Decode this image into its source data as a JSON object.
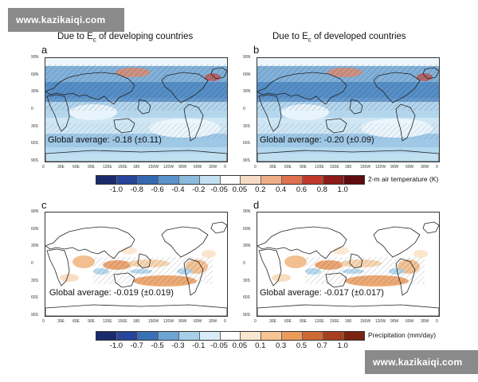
{
  "watermark": "www.kazikaiqi.com",
  "titles": {
    "left_prefix": "Due to E",
    "left_sub": "c",
    "left_suffix": " of developing countries",
    "right_prefix": "Due to E",
    "right_sub": "c",
    "right_suffix": " of developed countries"
  },
  "panels": [
    {
      "letter": "a",
      "global_average": "Global average: -0.18 (±0.11)"
    },
    {
      "letter": "b",
      "global_average": "Global average: -0.20 (±0.09)"
    },
    {
      "letter": "c",
      "global_average": "Global average: -0.019 (±0.019)"
    },
    {
      "letter": "d",
      "global_average": "Global average: -0.017 (±0.017)"
    }
  ],
  "lat_ticks": [
    "90N",
    "60N",
    "30N",
    "0",
    "30S",
    "60S",
    "90S"
  ],
  "lon_ticks": [
    "0",
    "30E",
    "60E",
    "90E",
    "120E",
    "150E",
    "180",
    "150W",
    "120W",
    "90W",
    "60W",
    "30W",
    "0"
  ],
  "temp_colorbar": {
    "labels": [
      "-1.0",
      "-0.8",
      "-0.6",
      "-0.4",
      "-0.2",
      "-0.05",
      "0.05",
      "0.2",
      "0.4",
      "0.6",
      "0.8",
      "1.0"
    ],
    "unit": "2-m air temperature (K)",
    "colors": [
      "#1b2a6b",
      "#27459a",
      "#3569b3",
      "#5a93cc",
      "#8bbbdf",
      "#c4e1f1",
      "#ffffff",
      "#f6dcc6",
      "#efad86",
      "#de7150",
      "#c1392b",
      "#8e1a1a",
      "#5e0c10"
    ]
  },
  "precip_colorbar": {
    "labels": [
      "-1.0",
      "-0.7",
      "-0.5",
      "-0.3",
      "-0.1",
      "-0.05",
      "0.05",
      "0.1",
      "0.3",
      "0.5",
      "0.7",
      "1.0"
    ],
    "unit": "Precipitation (mm/day)",
    "colors": [
      "#1b2a6b",
      "#27459a",
      "#3a70b6",
      "#6ea4d4",
      "#a7cfe8",
      "#d7ecf6",
      "#ffffff",
      "#fbe7cf",
      "#f6c593",
      "#ea9b5c",
      "#cd6a34",
      "#a8401f",
      "#7a2310"
    ]
  }
}
